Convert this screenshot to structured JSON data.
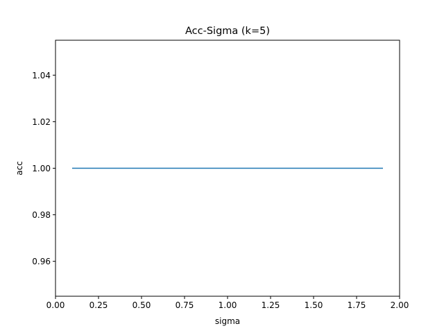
{
  "chart_data": {
    "type": "line",
    "title": "Acc-Sigma (k=5)",
    "xlabel": "sigma",
    "ylabel": "acc",
    "xlim": [
      0.0,
      2.0
    ],
    "ylim": [
      0.945,
      1.055
    ],
    "xticks": [
      0.0,
      0.25,
      0.5,
      0.75,
      1.0,
      1.25,
      1.5,
      1.75,
      2.0
    ],
    "xtick_labels": [
      "0.00",
      "0.25",
      "0.50",
      "0.75",
      "1.00",
      "1.25",
      "1.50",
      "1.75",
      "2.00"
    ],
    "yticks": [
      0.96,
      0.98,
      1.0,
      1.02,
      1.04
    ],
    "ytick_labels": [
      "0.96",
      "0.98",
      "1.00",
      "1.02",
      "1.04"
    ],
    "grid": false,
    "series": [
      {
        "color": "#1f77b4",
        "x": [
          0.1,
          0.2,
          0.3,
          0.4,
          0.5,
          0.6,
          0.7,
          0.8,
          0.9,
          1.0,
          1.1,
          1.2,
          1.3,
          1.4,
          1.5,
          1.6,
          1.7,
          1.8,
          1.9
        ],
        "y": [
          1.0,
          1.0,
          1.0,
          1.0,
          1.0,
          1.0,
          1.0,
          1.0,
          1.0,
          1.0,
          1.0,
          1.0,
          1.0,
          1.0,
          1.0,
          1.0,
          1.0,
          1.0,
          1.0
        ]
      }
    ]
  }
}
